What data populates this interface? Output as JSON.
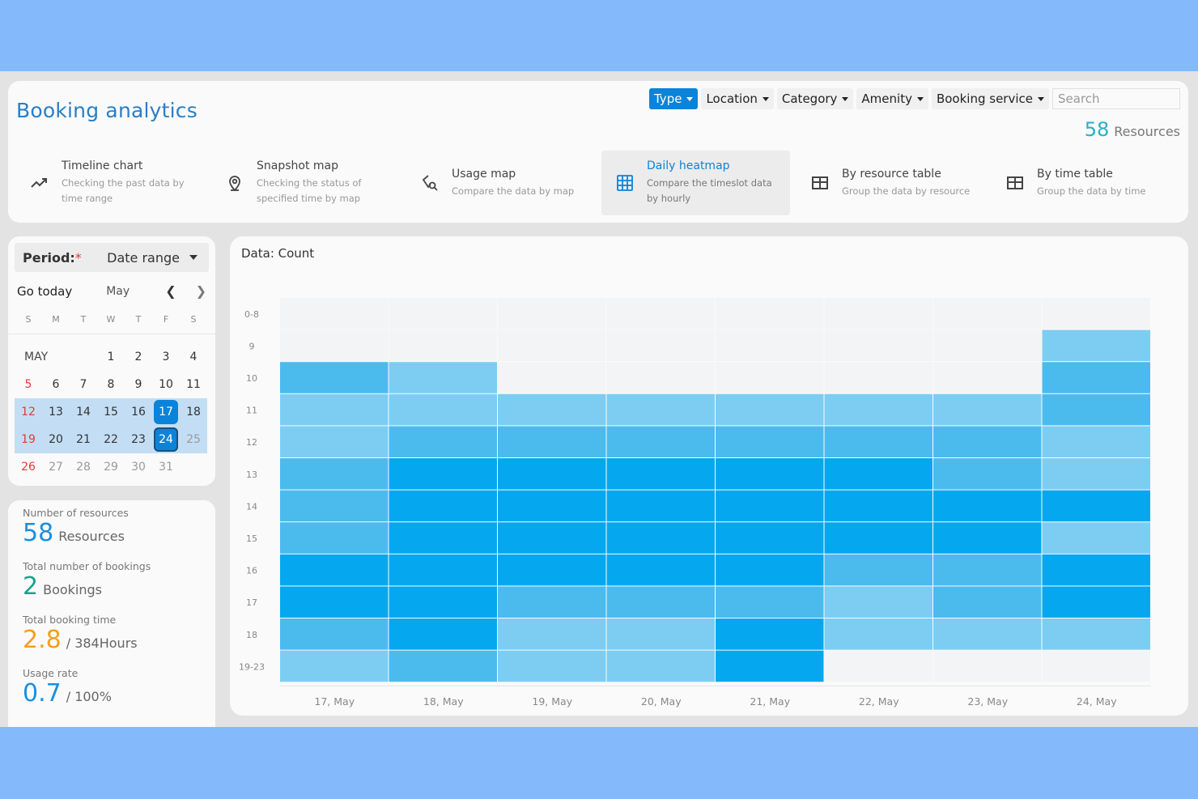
{
  "header": {
    "title": "Booking analytics",
    "filters": [
      {
        "label": "Type",
        "active": true
      },
      {
        "label": "Location",
        "active": false
      },
      {
        "label": "Category",
        "active": false
      },
      {
        "label": "Amenity",
        "active": false
      },
      {
        "label": "Booking service",
        "active": false
      }
    ],
    "search_placeholder": "Search",
    "resources_count": "58",
    "resources_label": "Resources"
  },
  "views": [
    {
      "title": "Timeline chart",
      "desc": "Checking the past data by time range",
      "icon": "trend-line-icon"
    },
    {
      "title": "Snapshot map",
      "desc": "Checking the status of specified time by map",
      "icon": "map-pin-icon"
    },
    {
      "title": "Usage map",
      "desc": "Compare the data by map",
      "icon": "map-search-icon"
    },
    {
      "title": "Daily heatmap",
      "desc": "Compare the timeslot data by hourly",
      "icon": "grid-icon",
      "active": true
    },
    {
      "title": "By resource table",
      "desc": "Group the data by resource",
      "icon": "table-icon"
    },
    {
      "title": "By time table",
      "desc": "Group the data by time",
      "icon": "table-icon"
    }
  ],
  "period": {
    "label": "Period:",
    "required_mark": "*",
    "value": "Date range"
  },
  "calendar": {
    "go_today": "Go today",
    "month": "May",
    "weekdays": [
      "S",
      "M",
      "T",
      "W",
      "T",
      "F",
      "S"
    ],
    "month_label": "MAY",
    "weeks": [
      [
        "",
        "",
        "",
        "1",
        "2",
        "3",
        "4"
      ],
      [
        "5",
        "6",
        "7",
        "8",
        "9",
        "10",
        "11"
      ],
      [
        "12",
        "13",
        "14",
        "15",
        "16",
        "17",
        "18"
      ],
      [
        "19",
        "20",
        "21",
        "22",
        "23",
        "24",
        "25"
      ],
      [
        "26",
        "27",
        "28",
        "29",
        "30",
        "31",
        ""
      ]
    ],
    "selected_start": "17",
    "selected_end": "24"
  },
  "stats": {
    "resources": {
      "label": "Number of resources",
      "value": "58",
      "unit": "Resources",
      "color": "#1a8fe0"
    },
    "bookings": {
      "label": "Total number of bookings",
      "value": "2",
      "unit": "Bookings",
      "color": "#1aa38a"
    },
    "time": {
      "label": "Total booking time",
      "value": "2.8",
      "unit": "/ 384Hours",
      "color": "#f2a01c"
    },
    "usage": {
      "label": "Usage rate",
      "value": "0.7",
      "unit": "/ 100%",
      "color": "#1a8fe0"
    }
  },
  "chart_data": {
    "type": "heatmap",
    "title": "Data: Count",
    "x": [
      "17, May",
      "18, May",
      "19, May",
      "20, May",
      "21, May",
      "22, May",
      "23, May",
      "24, May"
    ],
    "y": [
      "0-8",
      "9",
      "10",
      "11",
      "12",
      "13",
      "14",
      "15",
      "16",
      "17",
      "18",
      "19-23"
    ],
    "values": [
      [
        0,
        0,
        0,
        0,
        0,
        0,
        0,
        0
      ],
      [
        0,
        0,
        0,
        0,
        0,
        0,
        0,
        1
      ],
      [
        2,
        1,
        0,
        0,
        0,
        0,
        0,
        2
      ],
      [
        1,
        1,
        1,
        1,
        1,
        1,
        1,
        2
      ],
      [
        1,
        2,
        2,
        2,
        2,
        2,
        2,
        1
      ],
      [
        2,
        3,
        3,
        3,
        3,
        3,
        2,
        1
      ],
      [
        2,
        3,
        3,
        3,
        3,
        3,
        3,
        3
      ],
      [
        2,
        3,
        3,
        3,
        3,
        3,
        3,
        1
      ],
      [
        3,
        3,
        3,
        3,
        3,
        2,
        2,
        3
      ],
      [
        3,
        3,
        2,
        2,
        2,
        1,
        2,
        3
      ],
      [
        2,
        3,
        1,
        1,
        3,
        1,
        1,
        1
      ],
      [
        1,
        2,
        1,
        1,
        3,
        0,
        0,
        0
      ]
    ],
    "colors": [
      "#f3f4f6",
      "#7dcdf2",
      "#4bbbee",
      "#05a8ef"
    ]
  }
}
